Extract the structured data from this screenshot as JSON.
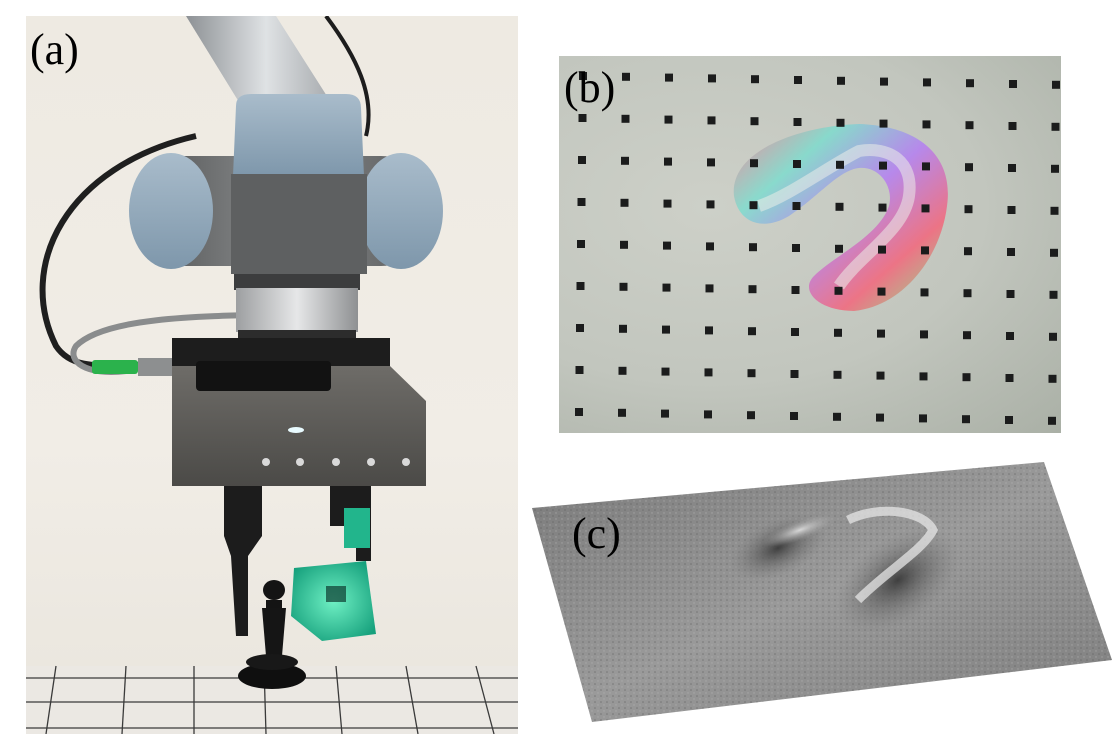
{
  "panels": [
    {
      "label": "(a)",
      "content": "photo"
    },
    {
      "label": "(b)",
      "content": "image"
    },
    {
      "label": "(c)",
      "content": "surface"
    }
  ],
  "colors": {
    "background": "#f1ede6",
    "robot_blue": "#8fa7b9",
    "robot_body": "#6f7172",
    "gripper_steel": "#5b5a57",
    "sensor_green": "#2ec89c",
    "dot_color": "#1b1c1c",
    "surface_gray": "#8c8c8c"
  }
}
